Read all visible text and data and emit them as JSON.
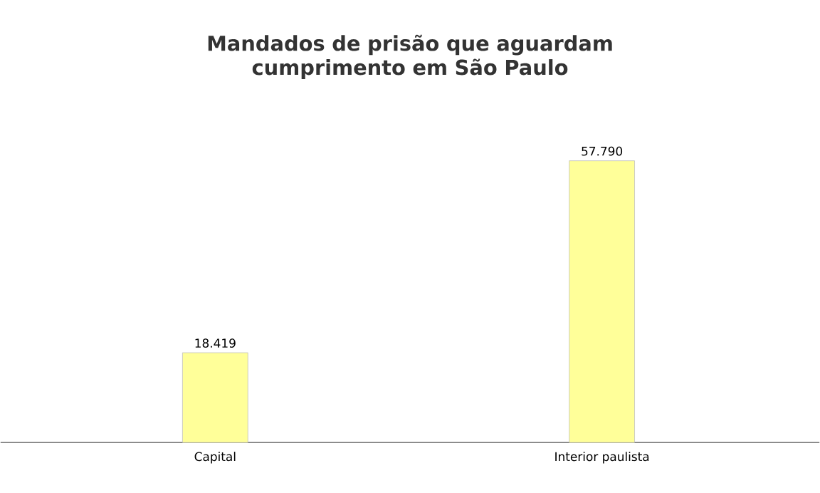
{
  "chart_data": {
    "type": "bar",
    "title": "Mandados de prisão que aguardam cumprimento em São Paulo",
    "categories": [
      "Capital",
      "Interior paulista"
    ],
    "values": [
      18419,
      57790
    ],
    "value_labels": [
      "18.419",
      "57.790"
    ],
    "color": "#ffff99"
  }
}
